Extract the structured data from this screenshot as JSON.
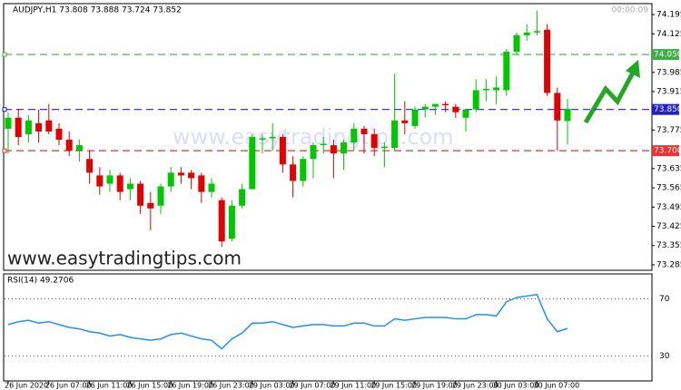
{
  "chart_data": {
    "type": "candlestick",
    "title": "AUDJPY,H1 73.808 73.888 73.724 73.852",
    "timer": "00:00:09",
    "watermarks": [
      "www.easytradingtips.com",
      "www.easytradingtips.com"
    ],
    "categories": [
      "26 Jun 2020",
      null,
      null,
      null,
      "26 Jun 07:00",
      null,
      null,
      null,
      "26 Jun 11:00",
      null,
      null,
      null,
      "26 Jun 15:00",
      null,
      null,
      null,
      "26 Jun 19:00",
      null,
      null,
      null,
      "26 Jun 23:00",
      null,
      null,
      null,
      "29 Jun 03:00",
      null,
      null,
      null,
      "29 Jun 07:00",
      null,
      null,
      null,
      "29 Jun 11:00",
      null,
      null,
      null,
      "29 Jun 15:00",
      null,
      null,
      null,
      "29 Jun 19:00",
      null,
      null,
      null,
      "29 Jun 23:00",
      null,
      null,
      null,
      "30 Jun 03:00",
      null,
      null,
      null,
      "30 Jun 07:00",
      null,
      null,
      null
    ],
    "open": [
      73.78,
      73.82,
      73.76,
      73.8,
      73.81,
      73.78,
      73.74,
      73.7,
      73.67,
      73.61,
      73.58,
      73.61,
      73.56,
      73.58,
      73.51,
      73.5,
      73.57,
      73.62,
      73.62,
      73.61,
      73.55,
      73.52,
      73.38,
      73.5,
      73.56,
      73.74,
      73.745,
      73.75,
      73.65,
      73.59,
      73.67,
      73.72,
      73.72,
      73.69,
      73.73,
      73.78,
      73.76,
      73.71,
      73.71,
      73.81,
      73.79,
      73.85,
      73.86,
      73.87,
      73.86,
      73.82,
      73.85,
      73.92,
      73.92,
      73.92,
      74.06,
      74.12,
      74.13,
      74.14,
      73.91,
      73.808
    ],
    "high": [
      73.84,
      73.85,
      73.83,
      73.85,
      73.87,
      73.8,
      73.77,
      73.74,
      73.7,
      73.64,
      73.63,
      73.62,
      73.6,
      73.59,
      73.55,
      73.58,
      73.64,
      73.64,
      73.63,
      73.62,
      73.6,
      73.53,
      73.52,
      73.58,
      73.76,
      73.76,
      73.8,
      73.76,
      73.68,
      73.68,
      73.73,
      73.75,
      73.74,
      73.74,
      73.8,
      73.79,
      73.78,
      73.73,
      73.98,
      73.88,
      73.86,
      73.87,
      73.87,
      73.88,
      73.87,
      73.85,
      73.96,
      73.96,
      73.97,
      74.07,
      74.13,
      74.16,
      74.21,
      74.16,
      73.93,
      73.888
    ],
    "low": [
      73.69,
      73.72,
      73.73,
      73.73,
      73.76,
      73.72,
      73.68,
      73.66,
      73.58,
      73.54,
      73.55,
      73.52,
      73.52,
      73.47,
      73.41,
      73.47,
      73.55,
      73.58,
      73.56,
      73.51,
      73.53,
      73.35,
      73.37,
      73.49,
      73.56,
      73.69,
      73.7,
      73.62,
      73.53,
      73.57,
      73.6,
      73.69,
      73.6,
      73.63,
      73.7,
      73.69,
      73.68,
      73.64,
      73.7,
      73.76,
      73.78,
      73.82,
      73.83,
      73.84,
      73.82,
      73.77,
      73.84,
      73.88,
      73.87,
      73.9,
      74.05,
      74.1,
      74.12,
      73.9,
      73.7,
      73.724
    ],
    "close": [
      73.82,
      73.75,
      73.81,
      73.77,
      73.77,
      73.74,
      73.7,
      73.72,
      73.62,
      73.57,
      73.61,
      73.55,
      73.58,
      73.5,
      73.49,
      73.57,
      73.62,
      73.61,
      73.6,
      73.55,
      73.58,
      73.37,
      73.5,
      73.56,
      73.75,
      73.745,
      73.75,
      73.65,
      73.59,
      73.67,
      73.72,
      73.725,
      73.69,
      73.73,
      73.78,
      73.76,
      73.71,
      73.715,
      73.81,
      73.8,
      73.85,
      73.86,
      73.87,
      73.865,
      73.84,
      73.85,
      73.92,
      73.925,
      73.93,
      74.06,
      74.12,
      74.13,
      74.135,
      73.91,
      73.81,
      73.852
    ],
    "up_color": "#00c800",
    "down_color": "#e50000",
    "ylim": [
      73.265,
      74.235
    ],
    "yticks": [
      74.195,
      74.125,
      73.985,
      73.915,
      73.775,
      73.635,
      73.565,
      73.495,
      73.425,
      73.355,
      73.285
    ],
    "levels": [
      {
        "value": 74.05,
        "label": "74.050",
        "color": "#3cb043"
      },
      {
        "value": 73.85,
        "label": "73.850",
        "color": "#2020d0"
      },
      {
        "value": 73.7,
        "label": "73.700",
        "color": "#f03030"
      }
    ],
    "indicator": {
      "title": "RSI(14) 49.2706",
      "color": "#1e90ff",
      "ylim": [
        12.5,
        87.5
      ],
      "yticks": [
        70,
        30
      ],
      "values": [
        52,
        54,
        55,
        53,
        54,
        52,
        50,
        49,
        47,
        46,
        44,
        45,
        43,
        42,
        41,
        42,
        45,
        46,
        44,
        42,
        41,
        35,
        42,
        46,
        53,
        53,
        54,
        52,
        50,
        51,
        52,
        52,
        51,
        51,
        53,
        53,
        51,
        51,
        56,
        55,
        56,
        57,
        57,
        57,
        56,
        56,
        59,
        59,
        58,
        68,
        71,
        72,
        73,
        56,
        47,
        49.2706
      ]
    }
  }
}
